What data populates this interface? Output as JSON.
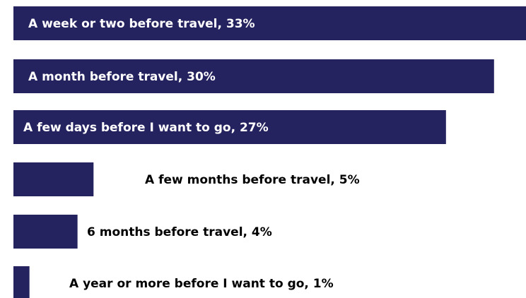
{
  "chart_data": {
    "type": "hbar",
    "color": "#25235f",
    "values": [
      33,
      30,
      27,
      5,
      4,
      1
    ],
    "value_labels": [
      "A week or two before travel, 33%",
      "A month before travel, 30%",
      "A few days before I want to go, 27%",
      "A few months before travel, 5%",
      "6 months before travel, 4%",
      "A year or more before I want to go, 1%"
    ]
  }
}
